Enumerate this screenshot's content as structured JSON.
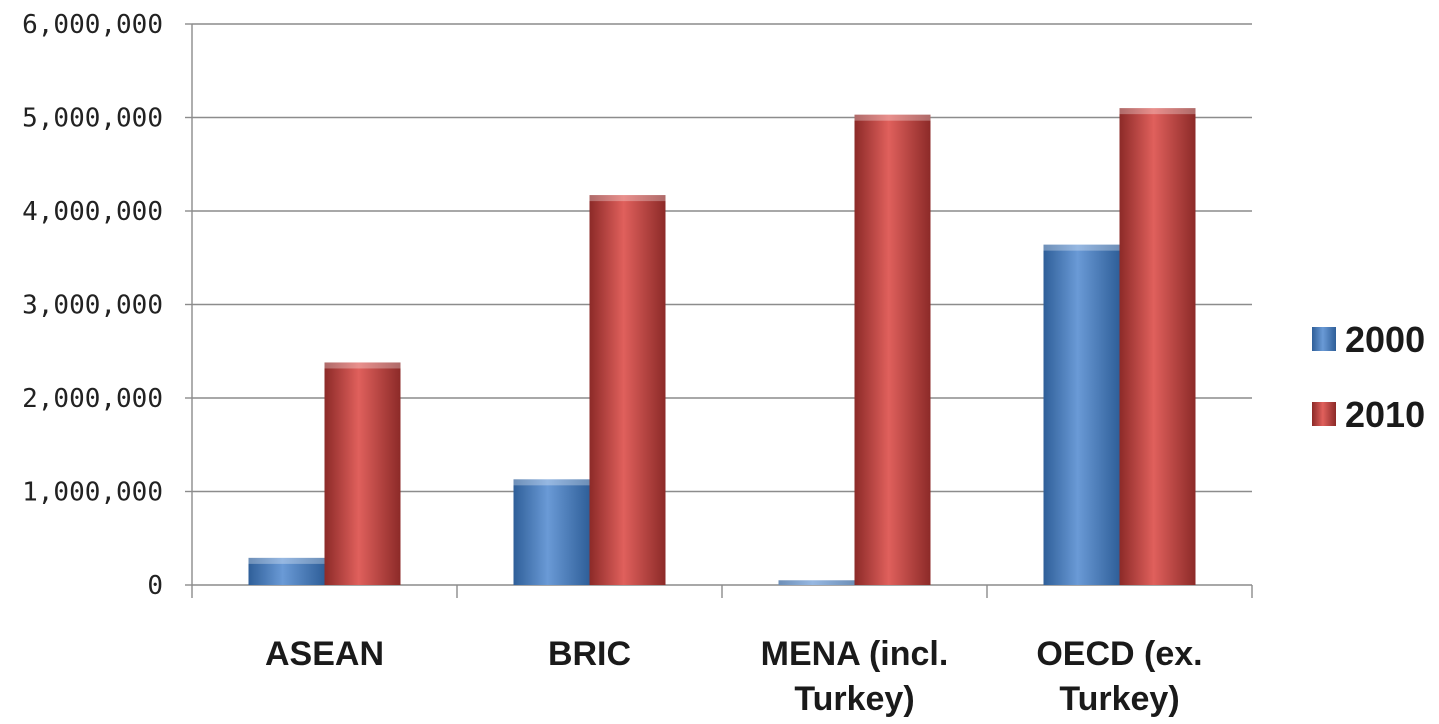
{
  "chart_data": {
    "type": "bar",
    "categories": [
      [
        "ASEAN"
      ],
      [
        "BRIC"
      ],
      [
        "MENA (incl.",
        "Turkey)"
      ],
      [
        "OECD (ex.",
        "Turkey)"
      ]
    ],
    "series": [
      {
        "name": "2000",
        "color": "#4f81bd",
        "values": [
          290000,
          1130000,
          50000,
          3640000
        ]
      },
      {
        "name": "2010",
        "color": "#c0504d",
        "values": [
          2380000,
          4170000,
          5030000,
          5100000
        ]
      }
    ],
    "ylim": [
      0,
      6000000
    ],
    "yticks": [
      0,
      1000000,
      2000000,
      3000000,
      4000000,
      5000000,
      6000000
    ],
    "ytick_labels": [
      "0",
      "1,000,000",
      "2,000,000",
      "3,000,000",
      "4,000,000",
      "5,000,000",
      "6,000,000"
    ],
    "grid": true,
    "legend_position": "right"
  }
}
